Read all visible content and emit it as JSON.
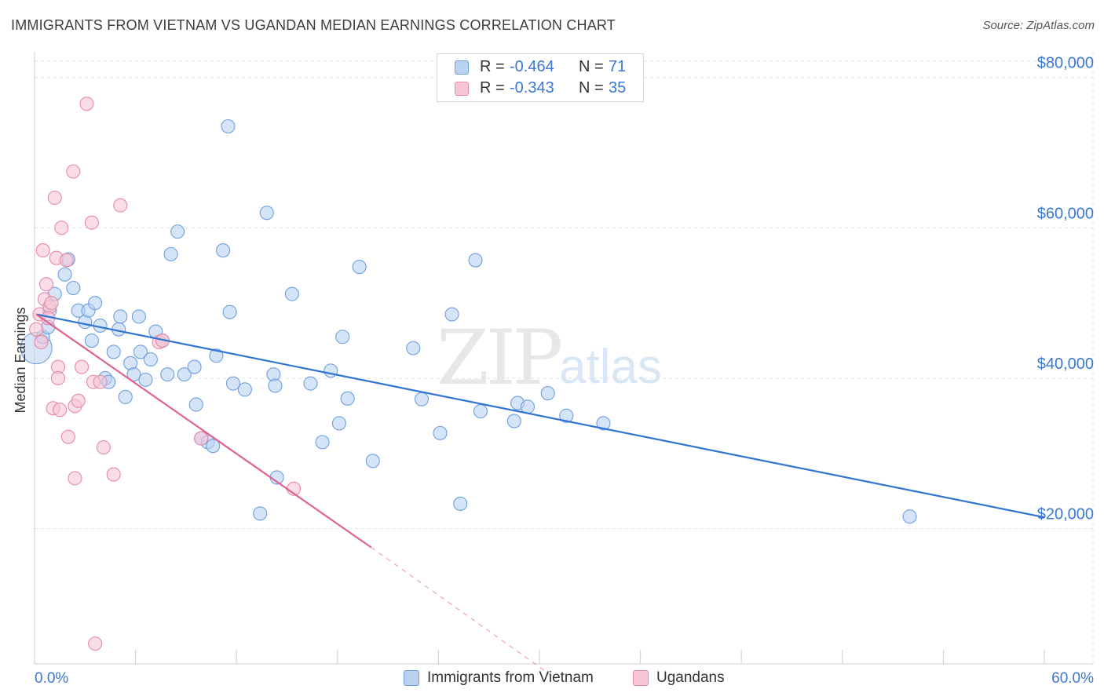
{
  "header": {
    "title": "IMMIGRANTS FROM VIETNAM VS UGANDAN MEDIAN EARNINGS CORRELATION CHART",
    "source": "Source: ZipAtlas.com"
  },
  "watermark": {
    "zip": "ZIP",
    "atlas": "atlas"
  },
  "legend_top": {
    "rows": [
      {
        "r_label": "R =",
        "r_value": "-0.464",
        "n_label": "N =",
        "n_value": "71"
      },
      {
        "r_label": "R =",
        "r_value": "-0.343",
        "n_label": "N =",
        "n_value": "35"
      }
    ]
  },
  "legend_bottom": [
    {
      "label": "Immigrants from Vietnam"
    },
    {
      "label": "Ugandans"
    }
  ],
  "colors": {
    "blue_fill": "#b9d2f2",
    "blue_stroke": "#6d9fdf",
    "blue_line": "#2f74d0",
    "pink_fill": "#f7c6d6",
    "pink_stroke": "#e68aa9",
    "pink_line": "#e0628f",
    "axis_label": "#3a78d4",
    "grid": "#e3e3e3"
  },
  "chart_data": {
    "type": "scatter",
    "title": "IMMIGRANTS FROM VIETNAM VS UGANDAN MEDIAN EARNINGS CORRELATION CHART",
    "xlabel": "",
    "ylabel": "Median Earnings",
    "xlim": [
      0,
      60
    ],
    "ylim": [
      2000,
      83000
    ],
    "x_tick_labels": [
      "0.0%",
      "60.0%"
    ],
    "y_ticks": [
      20000,
      40000,
      60000,
      80000
    ],
    "y_tick_labels": [
      "$20,000",
      "$40,000",
      "$60,000",
      "$80,000"
    ],
    "grid": true,
    "series": [
      {
        "name": "Immigrants from Vietnam",
        "color": "blue",
        "points": [
          [
            0.1,
            44000
          ],
          [
            0.5,
            45500
          ],
          [
            0.8,
            46800
          ],
          [
            0.9,
            49000
          ],
          [
            1.2,
            51200
          ],
          [
            1.8,
            53800
          ],
          [
            2.0,
            55800
          ],
          [
            2.3,
            52000
          ],
          [
            2.6,
            49000
          ],
          [
            3.0,
            47500
          ],
          [
            3.2,
            49000
          ],
          [
            3.4,
            45000
          ],
          [
            3.6,
            50000
          ],
          [
            3.9,
            47000
          ],
          [
            4.2,
            40000
          ],
          [
            4.4,
            39500
          ],
          [
            4.7,
            43500
          ],
          [
            5.0,
            46500
          ],
          [
            5.1,
            48200
          ],
          [
            5.4,
            37500
          ],
          [
            5.7,
            42000
          ],
          [
            5.9,
            40500
          ],
          [
            6.2,
            48200
          ],
          [
            6.3,
            43500
          ],
          [
            6.6,
            39800
          ],
          [
            6.9,
            42500
          ],
          [
            7.2,
            46200
          ],
          [
            7.6,
            45000
          ],
          [
            7.9,
            40500
          ],
          [
            8.1,
            56500
          ],
          [
            8.5,
            59500
          ],
          [
            8.9,
            40500
          ],
          [
            9.5,
            41500
          ],
          [
            9.6,
            36500
          ],
          [
            9.9,
            32000
          ],
          [
            10.3,
            31500
          ],
          [
            10.6,
            31000
          ],
          [
            10.8,
            43000
          ],
          [
            11.2,
            57000
          ],
          [
            11.5,
            73500
          ],
          [
            11.6,
            48800
          ],
          [
            11.8,
            39300
          ],
          [
            12.5,
            38500
          ],
          [
            13.4,
            22000
          ],
          [
            13.8,
            62000
          ],
          [
            14.2,
            40500
          ],
          [
            14.3,
            39000
          ],
          [
            14.4,
            26800
          ],
          [
            15.3,
            51200
          ],
          [
            16.4,
            39300
          ],
          [
            17.1,
            31500
          ],
          [
            17.6,
            41000
          ],
          [
            18.1,
            34000
          ],
          [
            18.3,
            45500
          ],
          [
            18.6,
            37300
          ],
          [
            19.3,
            54800
          ],
          [
            20.1,
            29000
          ],
          [
            23.0,
            37200
          ],
          [
            24.1,
            32700
          ],
          [
            24.8,
            48500
          ],
          [
            25.3,
            23300
          ],
          [
            26.2,
            55700
          ],
          [
            26.5,
            35600
          ],
          [
            28.5,
            34300
          ],
          [
            28.7,
            36700
          ],
          [
            29.3,
            36200
          ],
          [
            30.5,
            38000
          ],
          [
            31.6,
            35000
          ],
          [
            52.0,
            21600
          ],
          [
            33.8,
            34000
          ],
          [
            22.5,
            44000
          ]
        ],
        "trend": {
          "x": [
            0.1,
            60
          ],
          "y": [
            48500,
            21500
          ]
        }
      },
      {
        "name": "Ugandans",
        "color": "pink",
        "points": [
          [
            0.1,
            46500
          ],
          [
            0.3,
            48500
          ],
          [
            0.4,
            44800
          ],
          [
            0.5,
            57000
          ],
          [
            0.6,
            50500
          ],
          [
            0.7,
            52500
          ],
          [
            0.9,
            49500
          ],
          [
            1.0,
            50000
          ],
          [
            1.1,
            36000
          ],
          [
            1.2,
            64000
          ],
          [
            1.3,
            56000
          ],
          [
            1.4,
            41500
          ],
          [
            1.4,
            40000
          ],
          [
            1.5,
            35800
          ],
          [
            1.6,
            60000
          ],
          [
            1.9,
            55700
          ],
          [
            2.0,
            32200
          ],
          [
            2.3,
            67500
          ],
          [
            2.4,
            26700
          ],
          [
            2.4,
            36300
          ],
          [
            2.6,
            37000
          ],
          [
            2.8,
            41500
          ],
          [
            3.1,
            76500
          ],
          [
            3.4,
            60700
          ],
          [
            3.5,
            39500
          ],
          [
            3.6,
            4700
          ],
          [
            3.9,
            39500
          ],
          [
            4.1,
            30800
          ],
          [
            4.7,
            27200
          ],
          [
            5.1,
            63000
          ],
          [
            7.4,
            44800
          ],
          [
            7.6,
            45000
          ],
          [
            9.9,
            32000
          ],
          [
            15.4,
            25300
          ],
          [
            0.8,
            48000
          ]
        ],
        "trend": {
          "x": [
            0.1,
            20.0
          ],
          "y": [
            48500,
            17500
          ]
        },
        "trend_extension": {
          "x": [
            20.0,
            31.0
          ],
          "y": [
            17500,
            0
          ]
        }
      }
    ]
  }
}
